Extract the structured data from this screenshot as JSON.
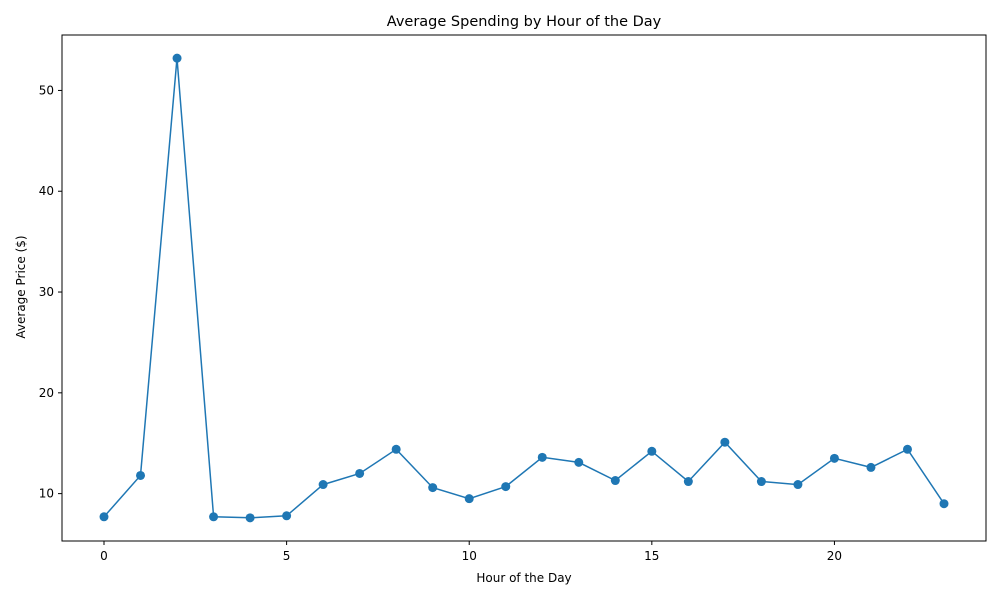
{
  "chart_data": {
    "type": "line",
    "title": "Average Spending by Hour of the Day",
    "xlabel": "Hour of the Day",
    "ylabel": "Average Price ($)",
    "xlim": [
      -1.15,
      24.15
    ],
    "ylim": [
      5.3,
      55.5
    ],
    "xticks": [
      0,
      5,
      10,
      15,
      20
    ],
    "yticks": [
      10,
      20,
      30,
      40,
      50
    ],
    "grid": false,
    "markers": true,
    "color": "#1f77b4",
    "series": [
      {
        "x": [
          0,
          1,
          2,
          3,
          4,
          5,
          6,
          7,
          8,
          9,
          10,
          11,
          12,
          13,
          14,
          15,
          16,
          17,
          18,
          19,
          20,
          21,
          22,
          23
        ],
        "values": [
          7.7,
          11.8,
          53.2,
          7.7,
          7.6,
          7.8,
          10.9,
          12.0,
          14.4,
          10.6,
          9.5,
          10.7,
          13.6,
          13.1,
          11.3,
          14.2,
          11.2,
          15.1,
          11.2,
          10.9,
          13.5,
          12.6,
          14.4,
          9.0
        ]
      }
    ]
  }
}
